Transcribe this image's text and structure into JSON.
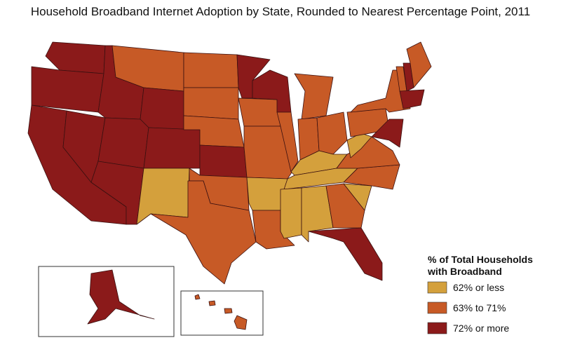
{
  "title": "Household Broadband Internet Adoption by State, Rounded to Nearest Percentage Point, 2011",
  "legend": {
    "title": [
      "% of Total Households",
      "with Broadband"
    ],
    "items": [
      {
        "label": "62% or less",
        "color": "#d4a03c"
      },
      {
        "label": "63% to 71%",
        "color": "#c75a26"
      },
      {
        "label": "72% or more",
        "color": "#8b1a1a"
      }
    ]
  }
}
